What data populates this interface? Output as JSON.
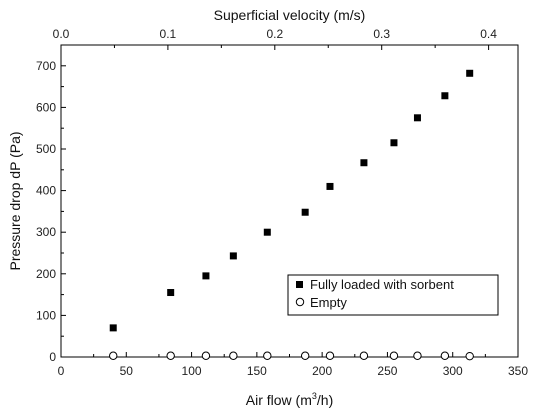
{
  "chart_data": {
    "type": "scatter",
    "xlabel_prefix": "Air flow (m",
    "xlabel_sup": "3",
    "xlabel_suffix": "/h)",
    "ylabel": "Pressure drop dP (Pa)",
    "x2label": "Superficial velocity (m/s)",
    "xlim": [
      0,
      350
    ],
    "ylim": [
      0,
      750
    ],
    "x2lim": [
      0,
      0.4275
    ],
    "x_ticks": [
      0,
      50,
      100,
      150,
      200,
      250,
      300,
      350
    ],
    "y_ticks": [
      0,
      100,
      200,
      300,
      400,
      500,
      600,
      700
    ],
    "x2_ticks": [
      0.0,
      0.1,
      0.2,
      0.3,
      0.4
    ],
    "x2_tick_labels": [
      "0.0",
      "0.1",
      "0.2",
      "0.3",
      "0.4"
    ],
    "legend_position": "lower-right",
    "series": [
      {
        "name": "Fully loaded with sorbent",
        "marker": "filled-square",
        "color": "#000000",
        "x": [
          40,
          84,
          111,
          132,
          158,
          187,
          206,
          232,
          255,
          273,
          294,
          313
        ],
        "y": [
          70,
          155,
          195,
          243,
          300,
          348,
          410,
          467,
          515,
          575,
          628,
          682
        ]
      },
      {
        "name": "Empty",
        "marker": "open-circle",
        "color": "#000000",
        "x": [
          40,
          84,
          111,
          132,
          158,
          187,
          206,
          232,
          255,
          273,
          294,
          313
        ],
        "y": [
          3,
          3,
          3,
          3,
          3,
          3,
          3,
          3,
          3,
          3,
          3,
          2
        ]
      }
    ]
  }
}
